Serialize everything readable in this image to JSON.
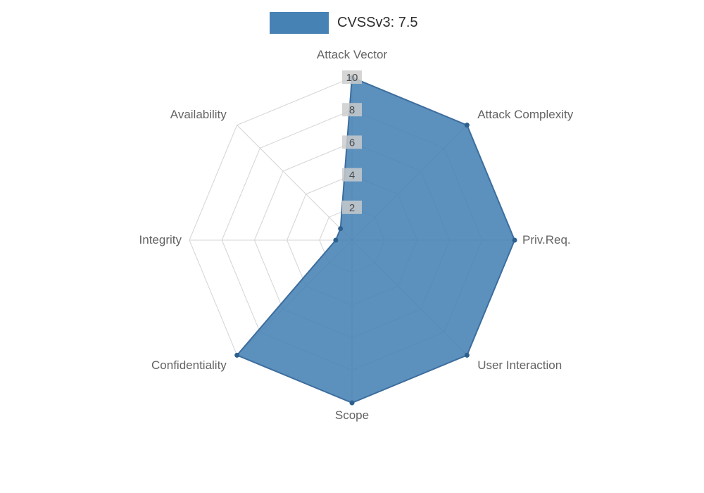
{
  "legend": {
    "label": "CVSSv3: 7.5",
    "swatch_color": "#4682b4"
  },
  "chart_data": {
    "type": "radar",
    "title": "CVSSv3: 7.5",
    "categories": [
      "Attack Vector",
      "Attack Complexity",
      "Priv.Req.",
      "User Interaction",
      "Scope",
      "Confidentiality",
      "Integrity",
      "Availability"
    ],
    "series": [
      {
        "name": "CVSSv3: 7.5",
        "values": [
          10,
          10,
          10,
          10,
          10,
          10,
          1,
          1
        ]
      }
    ],
    "rmax": 10,
    "ticks": [
      2,
      4,
      6,
      8,
      10
    ],
    "start": "top",
    "direction": "clockwise",
    "grid": true,
    "legend_position": "top-center",
    "colors": {
      "series_fill": "#4682b4",
      "series_stroke": "#3d6d9e",
      "vertex_dot": "#2d5f8f",
      "grid_line": "#d4d4d4",
      "tick_bg": "#cccccc",
      "tick_text": "#4a4a4a",
      "axis_label": "#636363"
    }
  }
}
